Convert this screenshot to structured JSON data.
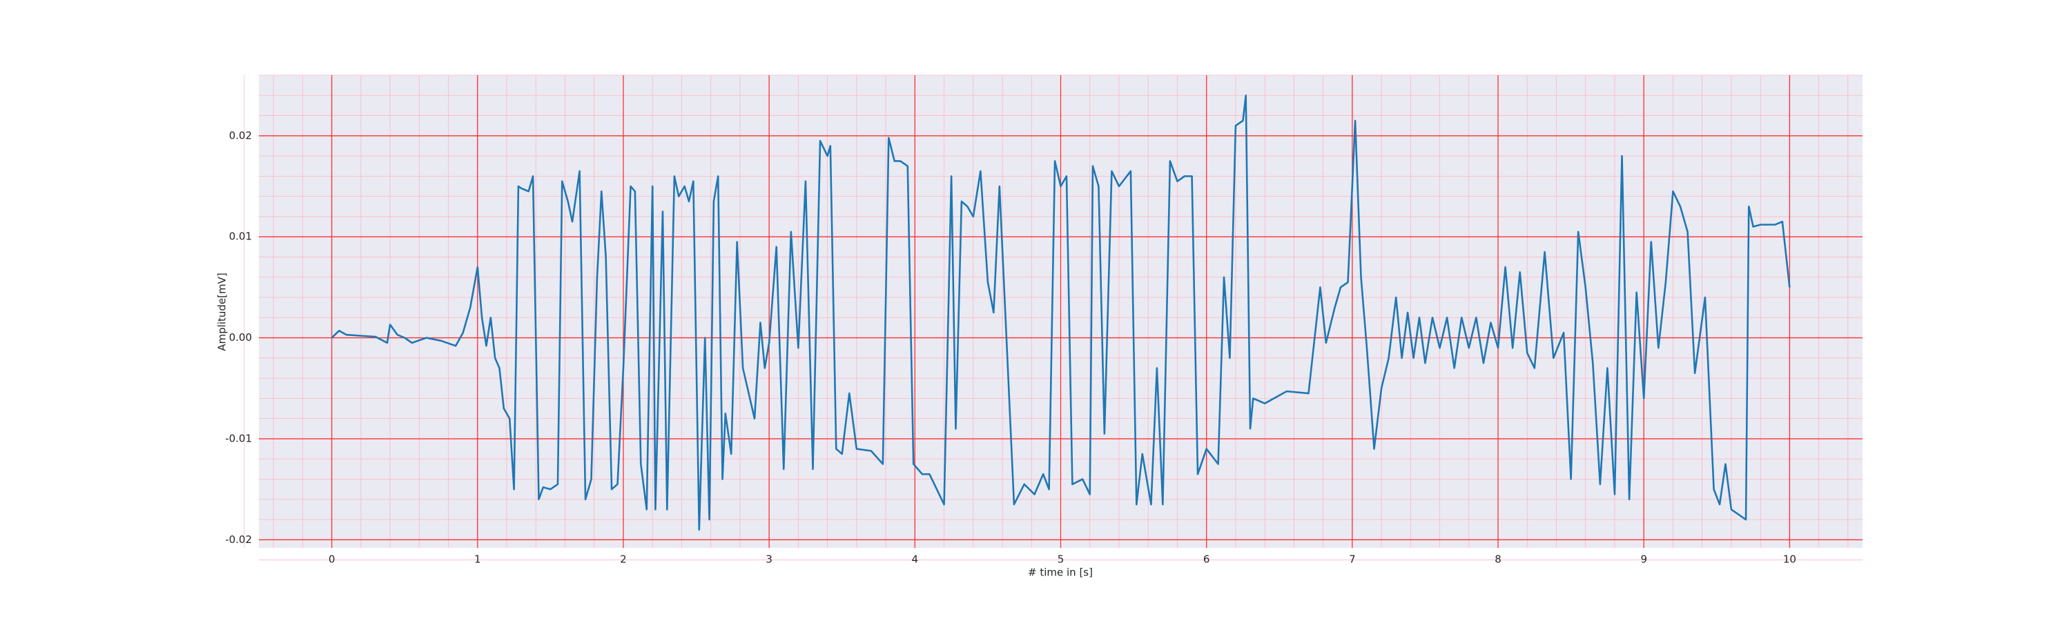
{
  "chart_data": {
    "type": "line",
    "xlabel": "# time in [s]",
    "ylabel": "Amplitude[mV]",
    "color": "#1f77b4",
    "grid": true,
    "minor_grid": true,
    "xlim": [
      -0.5,
      10.5
    ],
    "ylim": [
      -0.0208,
      0.026
    ],
    "xticks": [
      0,
      1,
      2,
      3,
      4,
      5,
      6,
      7,
      8,
      9,
      10
    ],
    "yticks": [
      {
        "value": -0.02,
        "label": "-0.02"
      },
      {
        "value": -0.01,
        "label": "-0.01"
      },
      {
        "value": 0,
        "label": "0.00"
      },
      {
        "value": 0.01,
        "label": "0.01"
      },
      {
        "value": 0.02,
        "label": "0.02"
      }
    ],
    "x": [
      0,
      0.05,
      0.1,
      0.2,
      0.3,
      0.38,
      0.4,
      0.45,
      0.5,
      0.55,
      0.65,
      0.75,
      0.85,
      0.9,
      0.95,
      1.0,
      1.03,
      1.06,
      1.09,
      1.12,
      1.15,
      1.18,
      1.22,
      1.25,
      1.28,
      1.3,
      1.35,
      1.38,
      1.42,
      1.45,
      1.5,
      1.55,
      1.58,
      1.62,
      1.65,
      1.7,
      1.74,
      1.78,
      1.82,
      1.85,
      1.88,
      1.92,
      1.96,
      2.0,
      2.05,
      2.08,
      2.12,
      2.16,
      2.2,
      2.22,
      2.27,
      2.3,
      2.35,
      2.38,
      2.42,
      2.45,
      2.48,
      2.52,
      2.56,
      2.59,
      2.62,
      2.65,
      2.68,
      2.7,
      2.74,
      2.78,
      2.82,
      2.86,
      2.9,
      2.94,
      2.97,
      3.0,
      3.05,
      3.1,
      3.15,
      3.2,
      3.25,
      3.3,
      3.35,
      3.4,
      3.42,
      3.46,
      3.5,
      3.55,
      3.6,
      3.7,
      3.78,
      3.82,
      3.86,
      3.9,
      3.95,
      3.99,
      4.05,
      4.1,
      4.15,
      4.2,
      4.25,
      4.28,
      4.32,
      4.36,
      4.4,
      4.45,
      4.5,
      4.54,
      4.58,
      4.62,
      4.68,
      4.75,
      4.82,
      4.88,
      4.92,
      4.96,
      5.0,
      5.04,
      5.08,
      5.15,
      5.2,
      5.22,
      5.26,
      5.3,
      5.35,
      5.4,
      5.48,
      5.52,
      5.56,
      5.62,
      5.66,
      5.7,
      5.75,
      5.8,
      5.85,
      5.9,
      5.94,
      6.0,
      6.08,
      6.12,
      6.16,
      6.2,
      6.25,
      6.27,
      6.3,
      6.32,
      6.4,
      6.55,
      6.7,
      6.78,
      6.82,
      6.88,
      6.92,
      6.97,
      7.02,
      7.06,
      7.1,
      7.15,
      7.2,
      7.25,
      7.3,
      7.34,
      7.38,
      7.42,
      7.46,
      7.5,
      7.55,
      7.6,
      7.65,
      7.7,
      7.75,
      7.8,
      7.85,
      7.9,
      7.95,
      8.0,
      8.05,
      8.1,
      8.15,
      8.2,
      8.25,
      8.32,
      8.38,
      8.45,
      8.5,
      8.55,
      8.6,
      8.65,
      8.7,
      8.75,
      8.8,
      8.85,
      8.9,
      8.95,
      9.0,
      9.05,
      9.1,
      9.15,
      9.2,
      9.25,
      9.3,
      9.35,
      9.42,
      9.48,
      9.52,
      9.56,
      9.6,
      9.65,
      9.7,
      9.72,
      9.75,
      9.8,
      9.9,
      9.95,
      10.0
    ],
    "values": [
      0,
      0.0007,
      0.0003,
      0.0002,
      0.0001,
      -0.0005,
      0.0013,
      0.0003,
      0,
      -0.0005,
      0,
      -0.0003,
      -0.0008,
      0.0005,
      0.003,
      0.007,
      0.002,
      -0.0008,
      0.002,
      -0.002,
      -0.003,
      -0.007,
      -0.008,
      -0.015,
      0.015,
      0.0148,
      0.0145,
      0.016,
      -0.016,
      -0.0148,
      -0.015,
      -0.0145,
      0.0155,
      0.0135,
      0.0115,
      0.0165,
      -0.016,
      -0.014,
      0.006,
      0.0145,
      0.008,
      -0.015,
      -0.0145,
      -0.003,
      0.015,
      0.0145,
      -0.0125,
      -0.017,
      0.015,
      -0.017,
      0.0125,
      -0.017,
      0.016,
      0.014,
      0.015,
      0.0135,
      0.0155,
      -0.019,
      0,
      -0.018,
      0.0135,
      0.016,
      -0.014,
      -0.0075,
      -0.0115,
      0.0095,
      -0.003,
      -0.0055,
      -0.008,
      0.0015,
      -0.003,
      -0.0005,
      0.009,
      -0.013,
      0.0105,
      -0.001,
      0.0155,
      -0.013,
      0.0195,
      0.018,
      0.019,
      -0.011,
      -0.0115,
      -0.0055,
      -0.011,
      -0.0112,
      -0.0125,
      0.0198,
      0.0175,
      0.0175,
      0.017,
      -0.0125,
      -0.0135,
      -0.0135,
      -0.015,
      -0.0165,
      0.016,
      -0.009,
      0.0135,
      0.013,
      0.012,
      0.0165,
      0.0055,
      0.0025,
      0.015,
      0.0025,
      -0.0165,
      -0.0145,
      -0.0155,
      -0.0135,
      -0.015,
      0.0175,
      0.015,
      0.016,
      -0.0145,
      -0.014,
      -0.0155,
      0.017,
      0.015,
      -0.0095,
      0.0165,
      0.015,
      0.0165,
      -0.0165,
      -0.0115,
      -0.0165,
      -0.003,
      -0.0165,
      0.0175,
      0.0155,
      0.016,
      0.016,
      -0.0135,
      -0.011,
      -0.0125,
      0.006,
      -0.002,
      0.021,
      0.0215,
      0.024,
      -0.009,
      -0.006,
      -0.0065,
      -0.0053,
      -0.0055,
      0.005,
      -0.0005,
      0.003,
      0.005,
      0.0055,
      0.0215,
      0.006,
      -0.001,
      -0.011,
      -0.005,
      -0.002,
      0.004,
      -0.002,
      0.0025,
      -0.002,
      0.002,
      -0.0025,
      0.002,
      -0.001,
      0.002,
      -0.003,
      0.002,
      -0.001,
      0.002,
      -0.0025,
      0.0015,
      -0.001,
      0.007,
      -0.001,
      0.0065,
      -0.0015,
      -0.003,
      0.0085,
      -0.002,
      0.0005,
      -0.014,
      0.0105,
      0.005,
      -0.0025,
      -0.0145,
      -0.003,
      -0.0155,
      0.018,
      -0.016,
      0.0045,
      -0.006,
      0.0095,
      -0.001,
      0.0055,
      0.0145,
      0.013,
      0.0105,
      -0.0035,
      0.004,
      -0.015,
      -0.0165,
      -0.0125,
      -0.017,
      -0.0175,
      -0.018,
      0.013,
      0.011,
      0.0112,
      0.0112,
      0.0115,
      0.005
    ]
  }
}
